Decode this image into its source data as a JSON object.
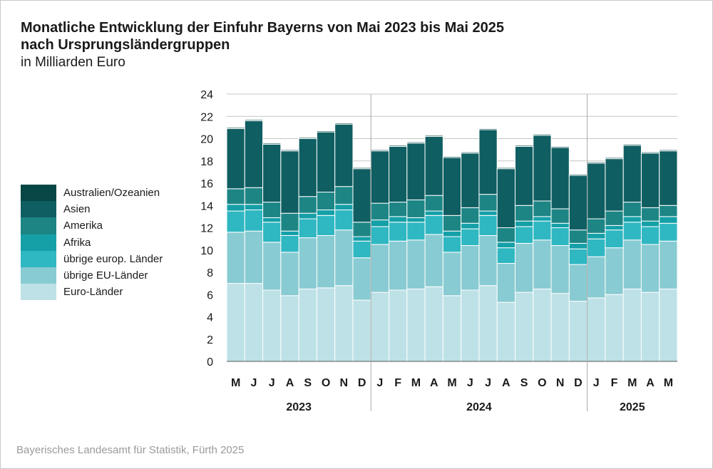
{
  "title_line1": "Monatliche Entwicklung der Einfuhr Bayerns von Mai 2023 bis Mai 2025",
  "title_line2": "nach Ursprungsländergruppen",
  "subtitle": "in Milliarden Euro",
  "source": "Bayerisches Landesamt für Statistik, Fürth 2025",
  "chart_data": {
    "type": "bar",
    "stacked": true,
    "categories": [
      "M",
      "J",
      "J",
      "A",
      "S",
      "O",
      "N",
      "D",
      "J",
      "F",
      "M",
      "A",
      "M",
      "J",
      "J",
      "A",
      "S",
      "O",
      "N",
      "D",
      "J",
      "F",
      "M",
      "A",
      "M"
    ],
    "year_groups": [
      {
        "label": "2023",
        "count": 8
      },
      {
        "label": "2024",
        "count": 12
      },
      {
        "label": "2025",
        "count": 5
      }
    ],
    "ylim": [
      0,
      24
    ],
    "yticks": [
      0,
      2,
      4,
      6,
      8,
      10,
      12,
      14,
      16,
      18,
      20,
      22,
      24
    ],
    "grid": true,
    "legend_position": "left",
    "series": [
      {
        "name": "Euro-Länder",
        "color": "#bde1e6",
        "values": [
          7.0,
          7.0,
          6.4,
          5.9,
          6.5,
          6.6,
          6.8,
          5.5,
          6.2,
          6.4,
          6.5,
          6.7,
          5.9,
          6.4,
          6.8,
          5.3,
          6.2,
          6.5,
          6.1,
          5.4,
          5.7,
          6.0,
          6.5,
          6.2,
          6.5
        ]
      },
      {
        "name": "übrige EU-Länder",
        "color": "#89cbd2",
        "values": [
          4.6,
          4.7,
          4.3,
          3.9,
          4.6,
          4.7,
          5.0,
          3.8,
          4.3,
          4.4,
          4.4,
          4.7,
          3.9,
          4.0,
          4.5,
          3.5,
          4.4,
          4.4,
          4.3,
          3.3,
          3.7,
          4.2,
          4.4,
          4.3,
          4.3
        ]
      },
      {
        "name": "übrige europ. Länder",
        "color": "#2fb7c2",
        "values": [
          1.9,
          1.9,
          1.8,
          1.5,
          1.7,
          1.8,
          1.8,
          1.5,
          1.6,
          1.7,
          1.6,
          1.7,
          1.4,
          1.5,
          1.8,
          1.4,
          1.5,
          1.7,
          1.6,
          1.4,
          1.6,
          1.6,
          1.6,
          1.6,
          1.6
        ]
      },
      {
        "name": "Afrika",
        "color": "#15a0a8",
        "values": [
          0.6,
          0.5,
          0.4,
          0.4,
          0.5,
          0.5,
          0.5,
          0.4,
          0.6,
          0.5,
          0.4,
          0.4,
          0.5,
          0.5,
          0.4,
          0.5,
          0.5,
          0.4,
          0.4,
          0.5,
          0.5,
          0.4,
          0.5,
          0.5,
          0.6
        ]
      },
      {
        "name": "Amerika",
        "color": "#1e8585",
        "values": [
          1.4,
          1.5,
          1.4,
          1.6,
          1.5,
          1.6,
          1.6,
          1.3,
          1.5,
          1.3,
          1.6,
          1.4,
          1.4,
          1.4,
          1.5,
          1.3,
          1.4,
          1.4,
          1.3,
          1.2,
          1.3,
          1.3,
          1.3,
          1.2,
          1.0
        ]
      },
      {
        "name": "Asien",
        "color": "#0f5e62",
        "values": [
          5.4,
          6.0,
          5.2,
          5.6,
          5.2,
          5.4,
          5.6,
          4.8,
          4.7,
          5.0,
          5.1,
          5.3,
          5.2,
          4.9,
          5.8,
          5.3,
          5.3,
          5.9,
          5.5,
          4.9,
          5.0,
          4.7,
          5.1,
          4.9,
          4.9
        ]
      },
      {
        "name": "Australien/Ozeanien",
        "color": "#064746",
        "values": [
          0.1,
          0.1,
          0.1,
          0.1,
          0.1,
          0.1,
          0.1,
          0.1,
          0.1,
          0.1,
          0.1,
          0.1,
          0.1,
          0.1,
          0.1,
          0.1,
          0.1,
          0.1,
          0.1,
          0.1,
          0.1,
          0.1,
          0.1,
          0.1,
          0.1
        ]
      }
    ]
  }
}
